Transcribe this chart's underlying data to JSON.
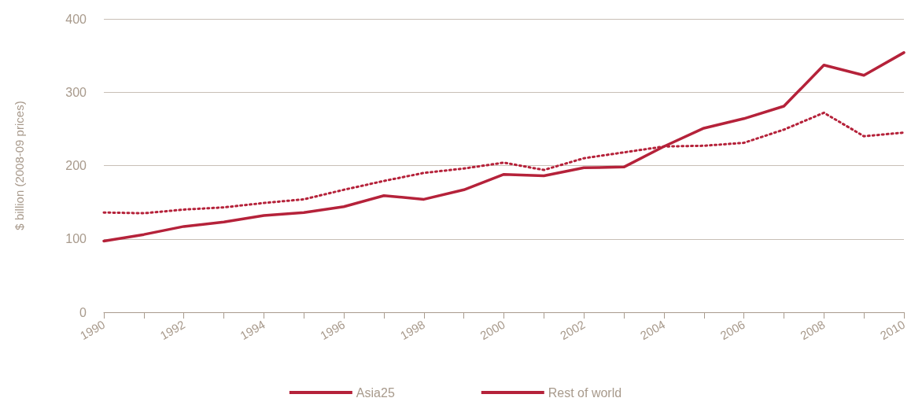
{
  "chart_data": {
    "type": "line",
    "ylabel": "$ billion (2008-09 prices)",
    "x": [
      1990,
      1991,
      1992,
      1993,
      1994,
      1995,
      1996,
      1997,
      1998,
      1999,
      2000,
      2001,
      2002,
      2003,
      2004,
      2005,
      2006,
      2007,
      2008,
      2009,
      2010
    ],
    "series": [
      {
        "name": "Asia25",
        "color": "#b5223a",
        "line_style": "solid",
        "values": [
          97,
          106,
          117,
          123,
          132,
          136,
          144,
          159,
          154,
          167,
          188,
          186,
          197,
          198,
          226,
          251,
          264,
          281,
          337,
          323,
          354
        ]
      },
      {
        "name": "Rest of world",
        "color": "#b5223a",
        "line_style": "dotted",
        "values": [
          136,
          135,
          140,
          143,
          149,
          154,
          167,
          179,
          190,
          196,
          204,
          194,
          210,
          218,
          226,
          227,
          231,
          249,
          272,
          240,
          245
        ]
      }
    ],
    "xlim": [
      1990,
      2010
    ],
    "xticks": [
      1990,
      1992,
      1994,
      1996,
      1998,
      2000,
      2002,
      2004,
      2006,
      2008,
      2010
    ],
    "ylim": [
      0,
      400
    ],
    "yticks": [
      0,
      100,
      200,
      300,
      400
    ],
    "grid": "y",
    "legend": "bottom",
    "marker": "none"
  }
}
